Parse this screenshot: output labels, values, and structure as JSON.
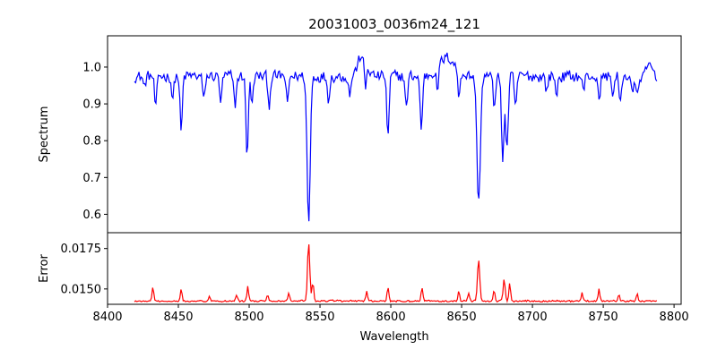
{
  "chart_data": {
    "title": "20031003_0036m24_121",
    "xlabel": "Wavelength",
    "xlim": [
      8400,
      8805
    ],
    "xticks": [
      8400,
      8450,
      8500,
      8550,
      8600,
      8650,
      8700,
      8750,
      8800
    ],
    "panels": [
      {
        "name": "spectrum-panel",
        "type": "line",
        "ylabel": "Spectrum",
        "ylim": [
          0.55,
          1.085
        ],
        "yticks": [
          0.6,
          0.7,
          0.8,
          0.9,
          1.0
        ],
        "ytick_labels": [
          "0.6",
          "0.7",
          "0.8",
          "0.9",
          "1.0"
        ],
        "color": "#0000ff",
        "continuum": 0.975,
        "x_start": 8419,
        "x_end": 8788,
        "noise": 0.022,
        "lines": [
          {
            "center": 8426,
            "depth": 0.03,
            "width": 0.8
          },
          {
            "center": 8434,
            "depth": 0.09,
            "width": 0.8
          },
          {
            "center": 8446,
            "depth": 0.06,
            "width": 0.8
          },
          {
            "center": 8452,
            "depth": 0.155,
            "width": 0.8
          },
          {
            "center": 8468,
            "depth": 0.07,
            "width": 0.8
          },
          {
            "center": 8480,
            "depth": 0.07,
            "width": 0.8
          },
          {
            "center": 8490,
            "depth": 0.08,
            "width": 0.9
          },
          {
            "center": 8498.5,
            "depth": 0.22,
            "width": 0.8
          },
          {
            "center": 8502,
            "depth": 0.08,
            "width": 0.8
          },
          {
            "center": 8514,
            "depth": 0.08,
            "width": 0.8
          },
          {
            "center": 8527,
            "depth": 0.08,
            "width": 0.8
          },
          {
            "center": 8542,
            "depth": 0.4,
            "width": 1.1
          },
          {
            "center": 8556,
            "depth": 0.06,
            "width": 0.8
          },
          {
            "center": 8571,
            "depth": 0.05,
            "width": 0.8
          },
          {
            "center": 8582,
            "depth": 0.085,
            "width": 0.8
          },
          {
            "center": 8598,
            "depth": 0.17,
            "width": 0.8
          },
          {
            "center": 8611,
            "depth": 0.09,
            "width": 0.8
          },
          {
            "center": 8621.5,
            "depth": 0.15,
            "width": 0.8
          },
          {
            "center": 8633,
            "depth": 0.06,
            "width": 0.8
          },
          {
            "center": 8648,
            "depth": 0.08,
            "width": 0.8
          },
          {
            "center": 8662,
            "depth": 0.345,
            "width": 1.2
          },
          {
            "center": 8673,
            "depth": 0.085,
            "width": 0.8
          },
          {
            "center": 8679,
            "depth": 0.22,
            "width": 0.9
          },
          {
            "center": 8682,
            "depth": 0.2,
            "width": 0.9
          },
          {
            "center": 8688,
            "depth": 0.09,
            "width": 0.8
          },
          {
            "center": 8710,
            "depth": 0.04,
            "width": 0.8
          },
          {
            "center": 8717,
            "depth": 0.05,
            "width": 0.8
          },
          {
            "center": 8736,
            "depth": 0.04,
            "width": 0.8
          },
          {
            "center": 8747,
            "depth": 0.07,
            "width": 0.8
          },
          {
            "center": 8757,
            "depth": 0.05,
            "width": 0.8
          },
          {
            "center": 8762,
            "depth": 0.08,
            "width": 0.8
          },
          {
            "center": 8771,
            "depth": 0.05,
            "width": 0.8
          },
          {
            "center": 8774,
            "depth": 0.06,
            "width": 0.8
          }
        ],
        "bumps": [
          {
            "center": 8580,
            "height": 0.06,
            "width": 3
          },
          {
            "center": 8640,
            "height": 0.05,
            "width": 6
          },
          {
            "center": 8783,
            "height": 0.03,
            "width": 2
          }
        ]
      },
      {
        "name": "error-panel",
        "type": "line",
        "ylabel": "Error",
        "ylim": [
          0.01405,
          0.01848
        ],
        "yticks": [
          0.015,
          0.0175
        ],
        "ytick_labels": [
          "0.0150",
          "0.0175"
        ],
        "color": "#ff0000",
        "continuum": 0.0142,
        "x_start": 8419,
        "x_end": 8788,
        "noise": 0.00016,
        "lines": [
          {
            "center": 8432,
            "depth": -0.0009,
            "width": 0.6
          },
          {
            "center": 8452,
            "depth": -0.0007,
            "width": 0.6
          },
          {
            "center": 8472,
            "depth": -0.0003,
            "width": 0.6
          },
          {
            "center": 8491,
            "depth": -0.0004,
            "width": 0.6
          },
          {
            "center": 8499,
            "depth": -0.0009,
            "width": 0.6
          },
          {
            "center": 8513,
            "depth": -0.0004,
            "width": 0.6
          },
          {
            "center": 8528,
            "depth": -0.0005,
            "width": 0.6
          },
          {
            "center": 8542,
            "depth": -0.0036,
            "width": 0.8
          },
          {
            "center": 8545,
            "depth": -0.0012,
            "width": 0.6
          },
          {
            "center": 8583,
            "depth": -0.0006,
            "width": 0.6
          },
          {
            "center": 8598,
            "depth": -0.0009,
            "width": 0.6
          },
          {
            "center": 8622,
            "depth": -0.0008,
            "width": 0.6
          },
          {
            "center": 8648,
            "depth": -0.0006,
            "width": 0.6
          },
          {
            "center": 8655,
            "depth": -0.0005,
            "width": 0.6
          },
          {
            "center": 8662,
            "depth": -0.0026,
            "width": 0.8
          },
          {
            "center": 8673,
            "depth": -0.0007,
            "width": 0.6
          },
          {
            "center": 8680,
            "depth": -0.0014,
            "width": 0.7
          },
          {
            "center": 8684,
            "depth": -0.0011,
            "width": 0.6
          },
          {
            "center": 8735,
            "depth": -0.0005,
            "width": 0.6
          },
          {
            "center": 8747,
            "depth": -0.0008,
            "width": 0.6
          },
          {
            "center": 8761,
            "depth": -0.0004,
            "width": 0.6
          },
          {
            "center": 8774,
            "depth": -0.0004,
            "width": 0.6
          }
        ],
        "bumps": []
      }
    ]
  }
}
